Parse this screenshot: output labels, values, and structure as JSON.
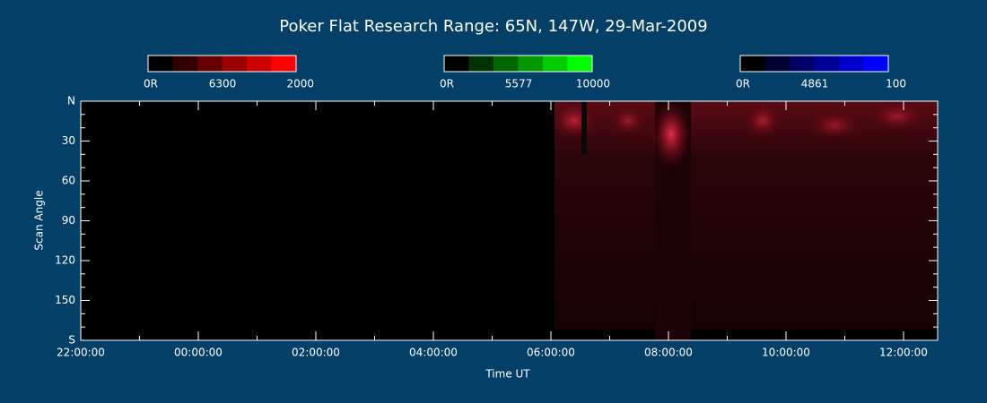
{
  "chart_data": {
    "type": "keogram",
    "title": "Poker Flat Research Range: 65N, 147W, 29-Mar-2009",
    "x_label": "Time UT",
    "y_label": "Scan Angle",
    "colorbars": [
      {
        "min": "0R",
        "name": "6300",
        "max": 2000,
        "colors": [
          "#000000",
          "#330000",
          "#660000",
          "#990000",
          "#cc0000",
          "#ff0000"
        ]
      },
      {
        "min": "0R",
        "name": "5577",
        "max": 10000,
        "colors": [
          "#000000",
          "#003300",
          "#006600",
          "#009900",
          "#00cc00",
          "#00ff00"
        ]
      },
      {
        "min": "0R",
        "name": "4861",
        "max": 100,
        "colors": [
          "#000000",
          "#000033",
          "#000066",
          "#000099",
          "#0000cc",
          "#0000ff"
        ]
      }
    ],
    "xlim": [
      0,
      14.58
    ],
    "xticks": [
      {
        "value": 0,
        "label": "22:00:00"
      },
      {
        "value": 2,
        "label": "00:00:00"
      },
      {
        "value": 4,
        "label": "02:00:00"
      },
      {
        "value": 6,
        "label": "04:00:00"
      },
      {
        "value": 8,
        "label": "06:00:00"
      },
      {
        "value": 10,
        "label": "08:00:00"
      },
      {
        "value": 12,
        "label": "10:00:00"
      },
      {
        "value": 14,
        "label": "12:00:00"
      }
    ],
    "xminorticks": [
      1,
      3,
      5,
      7,
      9,
      11,
      13
    ],
    "ylim": [
      0,
      180
    ],
    "yticks": [
      {
        "value": 0,
        "label": "N"
      },
      30,
      60,
      90,
      120,
      150,
      {
        "value": 180,
        "label": "S"
      }
    ],
    "yminorticks": [
      10,
      20,
      40,
      50,
      70,
      80,
      100,
      110,
      130,
      140,
      160,
      170
    ]
  }
}
